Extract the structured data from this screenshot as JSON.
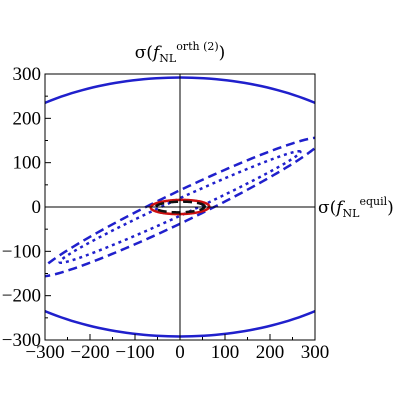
{
  "chart_data": {
    "type": "line",
    "x_axis_label": {
      "base": "σ(",
      "f": "f",
      "sub": "NL",
      "sup": "equil",
      "close": ")"
    },
    "y_axis_label": {
      "base": "σ(",
      "f": "f",
      "sub": "NL",
      "sup": "orth (2)",
      "close": ")"
    },
    "xlim": [
      -300,
      300
    ],
    "ylim": [
      -300,
      300
    ],
    "x_ticks": [
      "−300",
      "−200",
      "−100",
      "0",
      "100",
      "200",
      "300"
    ],
    "y_ticks": [
      "300",
      "200",
      "100",
      "0",
      "−100",
      "−200",
      "−300"
    ],
    "grid": false,
    "axes_through_origin": true,
    "series": [
      {
        "style": "solid",
        "color": "#2020cc",
        "center": [
          0,
          0
        ],
        "semi_major": 505,
        "semi_minor": 292,
        "angle_deg": 0
      },
      {
        "style": "dashed",
        "color": "#2020cc",
        "center": [
          0,
          0
        ],
        "semi_major": 350,
        "semi_minor": 34,
        "angle_deg": 26
      },
      {
        "style": "dotted",
        "color": "#2020cc",
        "center": [
          0,
          0
        ],
        "semi_major": 295,
        "semi_minor": 18,
        "angle_deg": 25
      },
      {
        "style": "solid",
        "color": "#cc1010",
        "center": [
          0,
          0
        ],
        "semi_major": 65,
        "semi_minor": 16,
        "angle_deg": 1
      },
      {
        "style": "dashed",
        "color": "#111111",
        "center": [
          0,
          0
        ],
        "semi_major": 55,
        "semi_minor": 12,
        "angle_deg": 1
      }
    ]
  }
}
